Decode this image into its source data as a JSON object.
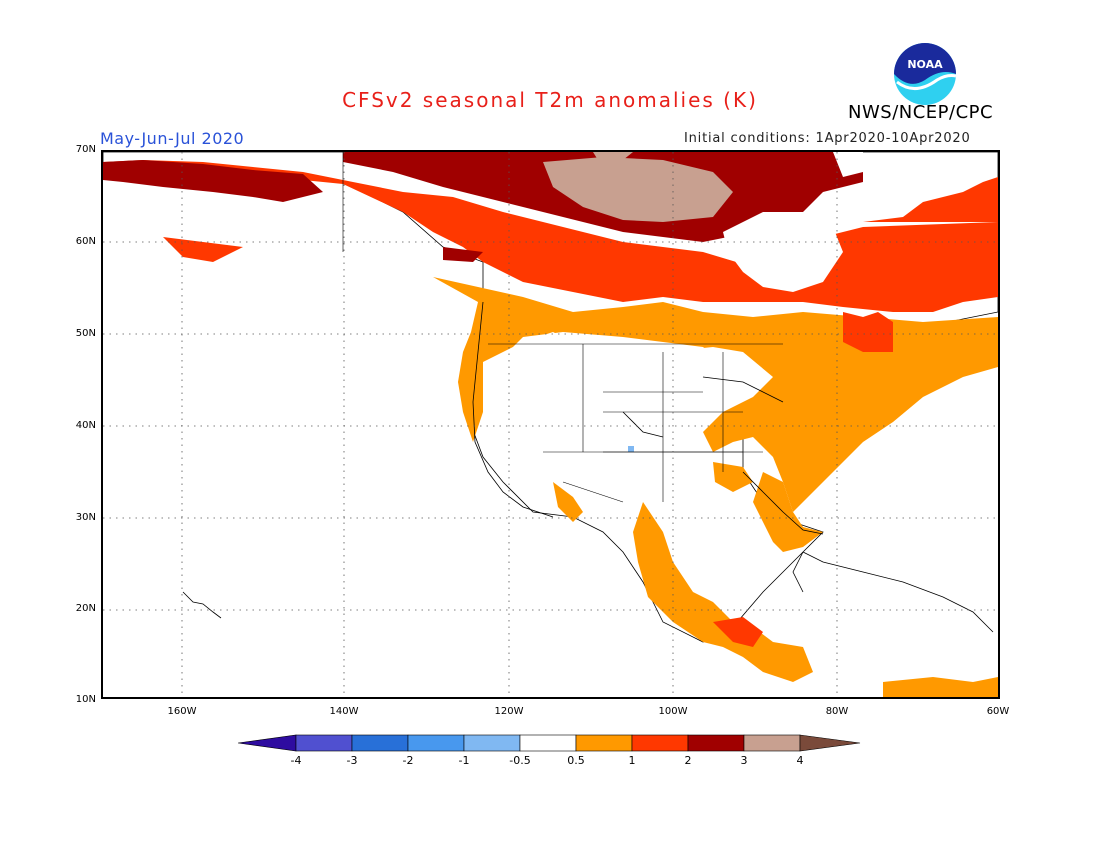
{
  "header": {
    "title": "CFSv2 seasonal T2m anomalies (K)",
    "organization": "NWS/NCEP/CPC",
    "period": "May-Jun-Jul 2020",
    "initial_conditions": "Initial conditions: 1Apr2020-10Apr2020",
    "logo_text": "NOAA"
  },
  "axes": {
    "lat_labels": [
      "70N",
      "60N",
      "50N",
      "40N",
      "30N",
      "20N",
      "10N"
    ],
    "lon_labels": [
      "160W",
      "140W",
      "120W",
      "100W",
      "80W",
      "60W"
    ]
  },
  "colorbar": {
    "labels": [
      "-4",
      "-3",
      "-2",
      "-1",
      "-0.5",
      "0.5",
      "1",
      "2",
      "3",
      "4"
    ],
    "colors": [
      "#2e0ca0",
      "#5050d0",
      "#2870d8",
      "#4898ee",
      "#80b8f2",
      "#ffffff",
      "#ff9900",
      "#ff3800",
      "#a00000",
      "#c8a090",
      "#7a4a3a"
    ]
  },
  "map": {
    "region": "North America",
    "colors": {
      "ocean": "#ffffff",
      "warm_05_1": "#ff9900",
      "warm_1_2": "#ff3800",
      "warm_2_3": "#a00000",
      "warm_3_4": "#c8a090",
      "cool": "#80b8f2",
      "grid": "#555555"
    }
  }
}
